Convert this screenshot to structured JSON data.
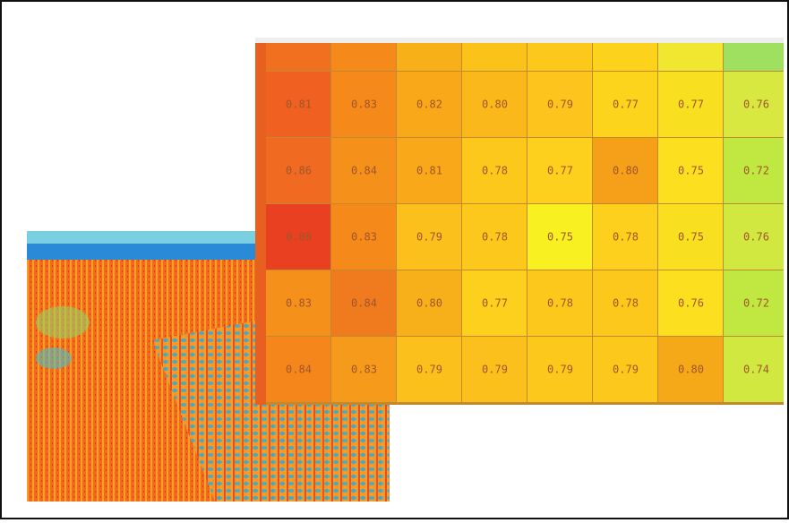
{
  "heatmap": {
    "header_colors": [
      "#f07020",
      "#f58a1a",
      "#f8b018",
      "#fbc21a",
      "#fcc81c",
      "#fcd21c",
      "#f0e830",
      "#a0e060"
    ],
    "rows": [
      [
        "0.81",
        "0.83",
        "0.82",
        "0.80",
        "0.79",
        "0.77",
        "0.77",
        "0.76"
      ],
      [
        "0.86",
        "0.84",
        "0.81",
        "0.78",
        "0.77",
        "0.80",
        "0.75",
        "0.72"
      ],
      [
        "0.88",
        "0.83",
        "0.79",
        "0.78",
        "0.75",
        "0.78",
        "0.75",
        "0.76"
      ],
      [
        "0.83",
        "0.84",
        "0.80",
        "0.77",
        "0.78",
        "0.78",
        "0.76",
        "0.72"
      ],
      [
        "0.84",
        "0.83",
        "0.79",
        "0.79",
        "0.79",
        "0.79",
        "0.80",
        "0.74"
      ]
    ],
    "colors": [
      [
        "#f06020",
        "#f58a1a",
        "#f8a818",
        "#fbb81a",
        "#fcc41c",
        "#fcd41c",
        "#f8e020",
        "#d8e840"
      ],
      [
        "#f06a22",
        "#f5901a",
        "#f8a818",
        "#fcc81c",
        "#fcd01c",
        "#f5a018",
        "#fce020",
        "#c0e840"
      ],
      [
        "#e84020",
        "#f58a1a",
        "#fbc01c",
        "#fcc81c",
        "#f8f020",
        "#fcd01c",
        "#f8e020",
        "#d0e840"
      ],
      [
        "#f5901a",
        "#f07a1e",
        "#f8b01a",
        "#fcd01c",
        "#fcc81c",
        "#fcc81c",
        "#fce020",
        "#c0e840"
      ],
      [
        "#f5861c",
        "#f59a1a",
        "#fbc01c",
        "#fbc01c",
        "#fcc81c",
        "#fcc81c",
        "#f5a818",
        "#d0e840"
      ]
    ]
  }
}
